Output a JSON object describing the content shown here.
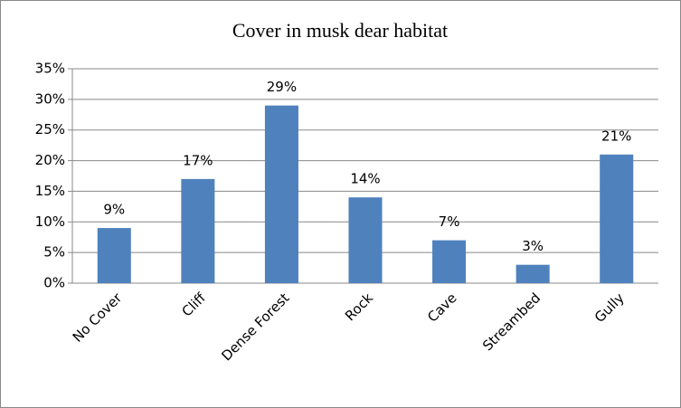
{
  "chart_data": {
    "type": "bar",
    "title": "Cover in musk dear habitat",
    "categories": [
      "No Cover",
      "Cliff",
      "Dense Forest",
      "Rock",
      "Cave",
      "Streambed",
      "Gully"
    ],
    "values": [
      9,
      17,
      29,
      14,
      7,
      3,
      21
    ],
    "value_labels": [
      "9%",
      "17%",
      "29%",
      "14%",
      "7%",
      "3%",
      "21%"
    ],
    "color": "#4f81bd",
    "ylim": [
      0,
      35
    ],
    "yticks": [
      {
        "value": 0,
        "label": "0%"
      },
      {
        "value": 5,
        "label": "5%"
      },
      {
        "value": 10,
        "label": "10%"
      },
      {
        "value": 15,
        "label": "15%"
      },
      {
        "value": 20,
        "label": "20%"
      },
      {
        "value": 25,
        "label": "25%"
      },
      {
        "value": 30,
        "label": "30%"
      },
      {
        "value": 35,
        "label": "35%"
      }
    ],
    "grid": true
  }
}
